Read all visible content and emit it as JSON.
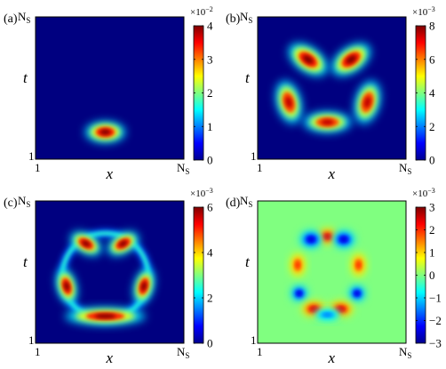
{
  "chart_data": [
    {
      "type": "heatmap",
      "panel_label": "(a)",
      "xlabel": "x",
      "ylabel": "t",
      "x_ticks": [
        "1",
        "NS"
      ],
      "y_ticks": [
        "1",
        "NS"
      ],
      "colormap": "jet",
      "colorbar": {
        "min": 0,
        "max": 4,
        "ticks": [
          "0",
          "1",
          "2",
          "3",
          "4"
        ],
        "exponent": "×10−2"
      },
      "features": [
        {
          "kind": "blob",
          "x": 0.47,
          "y": 0.19,
          "rx": 0.1,
          "ry": 0.055,
          "value": 4.0
        }
      ]
    },
    {
      "type": "heatmap",
      "panel_label": "(b)",
      "xlabel": "x",
      "ylabel": "t",
      "x_ticks": [
        "1",
        "NS"
      ],
      "y_ticks": [
        "1",
        "NS"
      ],
      "colormap": "jet",
      "colorbar": {
        "min": 0,
        "max": 8,
        "ticks": [
          "0",
          "2",
          "4",
          "6",
          "8"
        ],
        "exponent": "×10−3"
      },
      "features": [
        {
          "kind": "blob",
          "x": 0.34,
          "y": 0.7,
          "rx": 0.11,
          "ry": 0.065,
          "value": 8.0,
          "angle": 35
        },
        {
          "kind": "blob",
          "x": 0.63,
          "y": 0.7,
          "rx": 0.11,
          "ry": 0.065,
          "value": 8.0,
          "angle": -35
        },
        {
          "kind": "blob",
          "x": 0.21,
          "y": 0.4,
          "rx": 0.11,
          "ry": 0.065,
          "value": 7.5,
          "angle": 75
        },
        {
          "kind": "blob",
          "x": 0.74,
          "y": 0.4,
          "rx": 0.11,
          "ry": 0.065,
          "value": 7.5,
          "angle": -75
        },
        {
          "kind": "blob",
          "x": 0.47,
          "y": 0.26,
          "rx": 0.12,
          "ry": 0.055,
          "value": 7.5
        }
      ]
    },
    {
      "type": "heatmap",
      "panel_label": "(c)",
      "xlabel": "x",
      "ylabel": "t",
      "x_ticks": [
        "1",
        "NS"
      ],
      "y_ticks": [
        "1",
        "NS"
      ],
      "colormap": "jet",
      "colorbar": {
        "min": 0,
        "max": 6,
        "ticks": [
          "0",
          "2",
          "4",
          "6"
        ],
        "exponent": "×10−3"
      },
      "features": [
        {
          "kind": "ring",
          "x": 0.47,
          "y": 0.47,
          "r": 0.29,
          "width": 0.035,
          "value": 2.5
        },
        {
          "kind": "blob",
          "x": 0.34,
          "y": 0.7,
          "rx": 0.085,
          "ry": 0.05,
          "value": 6.0,
          "angle": 30
        },
        {
          "kind": "blob",
          "x": 0.59,
          "y": 0.7,
          "rx": 0.085,
          "ry": 0.05,
          "value": 6.0,
          "angle": -30
        },
        {
          "kind": "blob",
          "x": 0.21,
          "y": 0.4,
          "rx": 0.09,
          "ry": 0.05,
          "value": 6.0,
          "angle": 75
        },
        {
          "kind": "blob",
          "x": 0.73,
          "y": 0.4,
          "rx": 0.09,
          "ry": 0.05,
          "value": 6.0,
          "angle": -75
        },
        {
          "kind": "blob",
          "x": 0.47,
          "y": 0.19,
          "rx": 0.2,
          "ry": 0.045,
          "value": 6.0
        }
      ]
    },
    {
      "type": "heatmap",
      "panel_label": "(d)",
      "xlabel": "x",
      "ylabel": "t",
      "x_ticks": [
        "1",
        "NS"
      ],
      "y_ticks": [
        "1",
        "NS"
      ],
      "colormap": "jet",
      "colorbar": {
        "min": -3,
        "max": 3,
        "ticks": [
          "3",
          "2",
          "1",
          "0",
          "−1",
          "−2",
          "−3"
        ],
        "exponent": "×10−3"
      },
      "features": [
        {
          "kind": "blob",
          "x": 0.47,
          "y": 0.75,
          "rx": 0.05,
          "ry": 0.04,
          "value": 2.5
        },
        {
          "kind": "blob",
          "x": 0.36,
          "y": 0.73,
          "rx": 0.055,
          "ry": 0.045,
          "value": -2.5
        },
        {
          "kind": "blob",
          "x": 0.58,
          "y": 0.73,
          "rx": 0.055,
          "ry": 0.045,
          "value": -2.5
        },
        {
          "kind": "blob",
          "x": 0.27,
          "y": 0.55,
          "rx": 0.035,
          "ry": 0.06,
          "value": 2.0
        },
        {
          "kind": "blob",
          "x": 0.68,
          "y": 0.55,
          "rx": 0.035,
          "ry": 0.06,
          "value": 2.0
        },
        {
          "kind": "blob",
          "x": 0.28,
          "y": 0.35,
          "rx": 0.04,
          "ry": 0.04,
          "value": -2.5
        },
        {
          "kind": "blob",
          "x": 0.67,
          "y": 0.35,
          "rx": 0.04,
          "ry": 0.04,
          "value": -2.5
        },
        {
          "kind": "blob",
          "x": 0.38,
          "y": 0.24,
          "rx": 0.06,
          "ry": 0.04,
          "value": 2.5
        },
        {
          "kind": "blob",
          "x": 0.56,
          "y": 0.24,
          "rx": 0.06,
          "ry": 0.04,
          "value": 2.5
        },
        {
          "kind": "blob",
          "x": 0.47,
          "y": 0.2,
          "rx": 0.07,
          "ry": 0.03,
          "value": -1.5
        }
      ]
    }
  ]
}
